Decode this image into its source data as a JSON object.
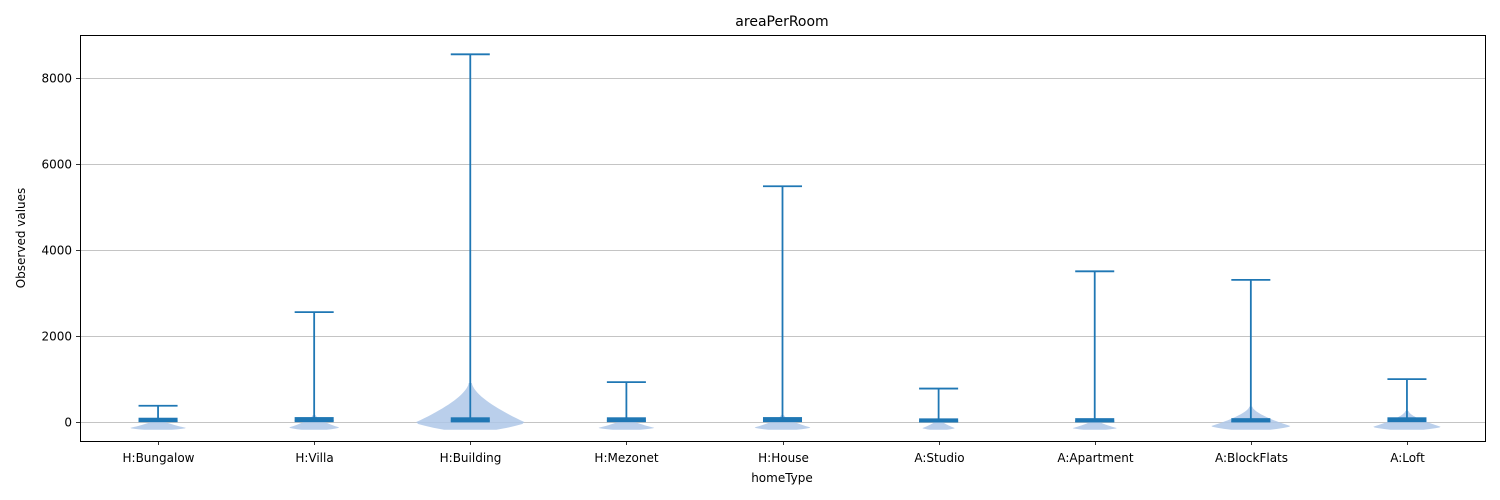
{
  "chart_data": {
    "type": "violin",
    "title": "areaPerRoom",
    "xlabel": "homeType",
    "ylabel": "Observed values",
    "ylim": [
      -450,
      9000
    ],
    "yticks": [
      0,
      2000,
      4000,
      6000,
      8000
    ],
    "ytick_labels": [
      "0",
      "2000",
      "4000",
      "6000",
      "8000"
    ],
    "grid": "y-major",
    "categories": [
      "H:Bungalow",
      "H:Villa",
      "H:Building",
      "H:Mezonet",
      "H:House",
      "A:Studio",
      "A:Apartment",
      "A:BlockFlats",
      "A:Loft"
    ],
    "violins": [
      {
        "min": 10,
        "max": 370,
        "median": 45,
        "spread": 0.45,
        "bulge": 80
      },
      {
        "min": 10,
        "max": 2550,
        "median": 60,
        "spread": 0.4,
        "bulge": 150
      },
      {
        "min": 5,
        "max": 8550,
        "median": 55,
        "spread": 0.9,
        "bulge": 900
      },
      {
        "min": 10,
        "max": 920,
        "median": 55,
        "spread": 0.45,
        "bulge": 100
      },
      {
        "min": 10,
        "max": 5480,
        "median": 60,
        "spread": 0.45,
        "bulge": 150
      },
      {
        "min": 5,
        "max": 770,
        "median": 30,
        "spread": 0.25,
        "bulge": 60
      },
      {
        "min": 5,
        "max": 3500,
        "median": 35,
        "spread": 0.35,
        "bulge": 60
      },
      {
        "min": 5,
        "max": 3300,
        "median": 35,
        "spread": 0.65,
        "bulge": 350
      },
      {
        "min": 10,
        "max": 990,
        "median": 55,
        "spread": 0.55,
        "bulge": 250
      }
    ],
    "colors": {
      "line": "#1f77b4",
      "body": "#aec7e8",
      "grid": "#b0b0b0"
    }
  }
}
